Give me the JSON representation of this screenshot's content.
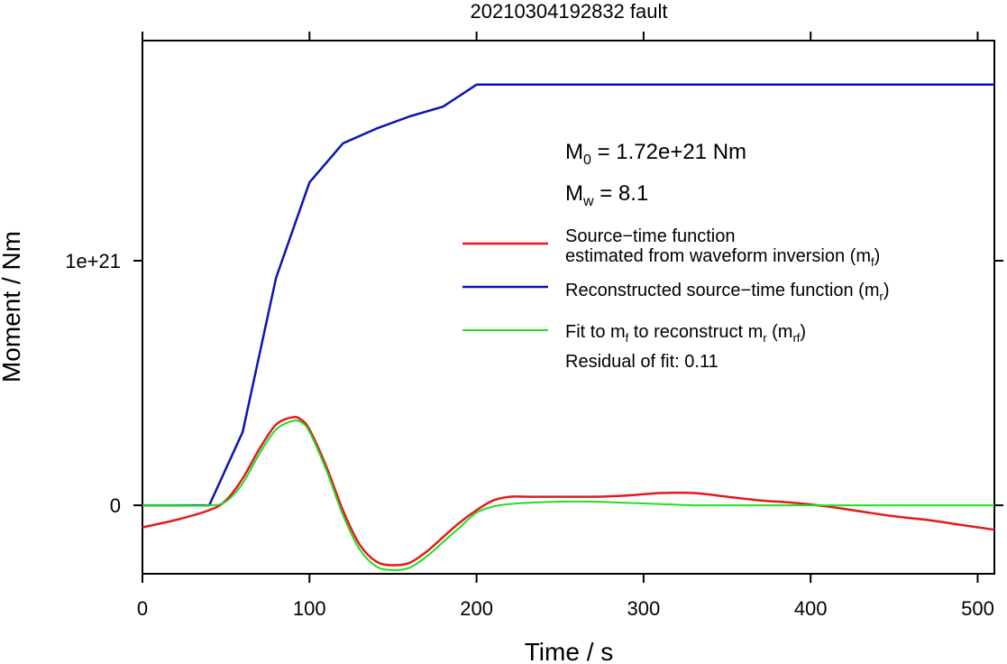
{
  "chart_data": {
    "type": "line",
    "title": "20210304192832 fault",
    "xlabel": "Time / s",
    "ylabel": "Moment / Nm",
    "xlim": [
      0,
      510
    ],
    "ylim": [
      -2.8e+20,
      1.9e+21
    ],
    "x_ticks": [
      0,
      100,
      200,
      300,
      400,
      500
    ],
    "x_tick_labels": [
      "0",
      "100",
      "200",
      "300",
      "400",
      "500"
    ],
    "y_ticks": [
      0,
      1e+21
    ],
    "y_tick_labels": [
      "0",
      "1e+21"
    ],
    "grid": false,
    "legend_position": "right",
    "annotations": {
      "m0": {
        "main": "M",
        "sub": "0",
        "rest": " = 1.72e+21 Nm"
      },
      "mw": {
        "main": "M",
        "sub": "w",
        "rest": " = 8.1"
      },
      "residual": "Residual of fit: 0.11"
    },
    "legend": [
      {
        "line1": "Source−time function",
        "line2": "estimated from waveform inversion (m",
        "sub": "f",
        "tail": ")",
        "color": "#e41a1c"
      },
      {
        "line1": "Reconstructed source−time function (m",
        "sub": "r",
        "tail": ")",
        "color": "#0a14b4"
      },
      {
        "line1": "Fit to m",
        "sub": "f",
        "mid": " to reconstruct m",
        "sub2": "r",
        "mid2": " (m",
        "sub3": "rf",
        "tail": ")",
        "color": "#22dd22"
      }
    ],
    "series": [
      {
        "name": "Reconstructed source−time function (mr)",
        "color": "#0a14b4",
        "x": [
          0,
          20,
          40,
          60,
          80,
          100,
          120,
          140,
          160,
          180,
          200,
          510
        ],
        "y": [
          0,
          0,
          0,
          3e+20,
          9.3e+20,
          1.32e+21,
          1.48e+21,
          1.54e+21,
          1.59e+21,
          1.63e+21,
          1.72e+21,
          1.72e+21
        ]
      },
      {
        "name": "Source−time function estimated from waveform inversion (mf)",
        "color": "#e41a1c",
        "x": [
          0,
          20,
          40,
          50,
          60,
          70,
          80,
          90,
          95,
          100,
          110,
          120,
          130,
          140,
          150,
          160,
          170,
          180,
          190,
          200,
          210,
          220,
          230,
          250,
          270,
          290,
          310,
          330,
          350,
          370,
          390,
          410,
          430,
          450,
          470,
          490,
          510
        ],
        "y": [
          -9e+19,
          -6e+19,
          -2e+19,
          2e+19,
          1.1e+20,
          2.3e+20,
          3.3e+20,
          3.6e+20,
          3.5e+20,
          3.1e+20,
          1.6e+20,
          -2e+19,
          -1.6e+20,
          -2.3e+20,
          -2.45e+20,
          -2.35e+20,
          -1.9e+20,
          -1.3e+20,
          -7e+19,
          -2e+19,
          2e+19,
          3.5e+19,
          3.5e+19,
          3.5e+19,
          3.5e+19,
          4e+19,
          5e+19,
          5e+19,
          3.5e+19,
          2e+19,
          1e+19,
          -5e+18,
          -2.5e+19,
          -4.5e+19,
          -6e+19,
          -8e+19,
          -1e+20
        ]
      },
      {
        "name": "Fit to mf to reconstruct mr (mrf)",
        "color": "#22dd22",
        "x": [
          0,
          20,
          40,
          50,
          60,
          70,
          80,
          90,
          95,
          100,
          110,
          120,
          130,
          140,
          150,
          160,
          170,
          180,
          190,
          200,
          210,
          220,
          230,
          250,
          270,
          290,
          310,
          330,
          350,
          370,
          390,
          410,
          430,
          450,
          470,
          490,
          510
        ],
        "y": [
          0,
          0,
          0,
          1.5e+19,
          9e+19,
          2.1e+20,
          3.1e+20,
          3.45e+20,
          3.4e+20,
          3e+20,
          1.45e+20,
          -4e+19,
          -1.8e+20,
          -2.5e+20,
          -2.65e+20,
          -2.55e+20,
          -2.1e+20,
          -1.5e+20,
          -9e+19,
          -3e+19,
          -5e+18,
          5e+18,
          1e+19,
          1.5e+19,
          1.5e+19,
          1e+19,
          5e+18,
          0,
          0,
          0,
          0,
          0,
          0,
          0,
          0,
          0,
          0
        ]
      }
    ]
  }
}
